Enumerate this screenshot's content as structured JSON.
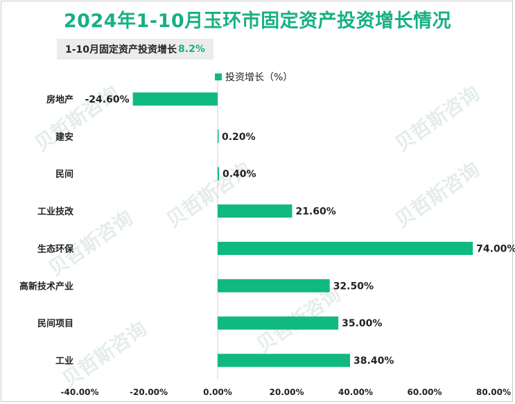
{
  "header": {
    "title": "2024年1-10月玉环市固定资产投资增长情况",
    "subtitle_label": "1-10月固定资产投资增长",
    "subtitle_value": "8.2%"
  },
  "colors": {
    "accent": "#17b082",
    "bar": "#10b981"
  },
  "chart_data": {
    "type": "bar",
    "orientation": "horizontal",
    "categories": [
      "房地产",
      "建安",
      "民间",
      "工业技改",
      "生态环保",
      "高新技术产业",
      "民间项目",
      "工业"
    ],
    "series": [
      {
        "name": "投资增长（%）",
        "values": [
          -24.6,
          0.2,
          0.4,
          21.6,
          74.0,
          32.5,
          35.0,
          38.4
        ]
      }
    ],
    "data_labels": [
      "-24.60%",
      "0.20%",
      "0.40%",
      "21.60%",
      "74.00%",
      "32.50%",
      "35.00%",
      "38.40%"
    ],
    "xlim": [
      -40,
      80
    ],
    "xticks": [
      -40,
      -20,
      0,
      20,
      40,
      60,
      80
    ],
    "xtick_labels": [
      "-40.00%",
      "-20.00%",
      "0.00%",
      "20.00%",
      "40.00%",
      "60.00%",
      "80.00%"
    ],
    "legend": "top-center",
    "grid": false
  }
}
